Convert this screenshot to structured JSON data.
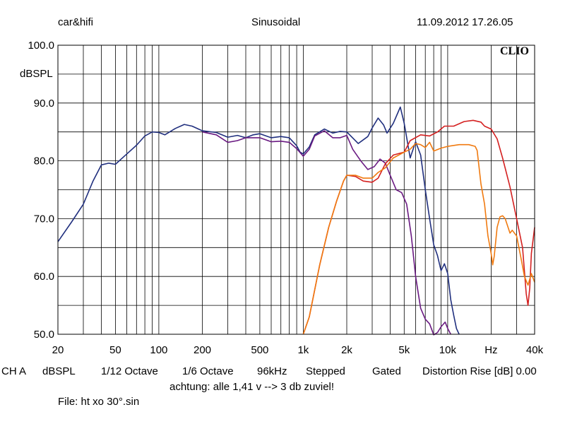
{
  "header": {
    "left": "car&hifi",
    "center": "Sinusoidal",
    "right": "11.09.2012 17.26.05"
  },
  "brand": "CLIO",
  "footer": {
    "channel": "CH A",
    "unit": "dBSPL",
    "smoothing": "1/12 Octave",
    "resolution": "1/6 Octave",
    "rate": "96kHz",
    "mode": "Stepped",
    "gating": "Gated",
    "distortion": "Distortion Rise [dB] 0.00",
    "note": "achtung: alle 1,41 v --> 3 db zuviel!",
    "file": "File: ht xo 30°.sin"
  },
  "chart_data": {
    "type": "line",
    "title": "Sinusoidal",
    "ylabel": "dBSPL",
    "xlabel": "Hz",
    "xscale": "log",
    "xlim": [
      20,
      40000
    ],
    "ylim": [
      50,
      100
    ],
    "grid": true,
    "yticks": [
      {
        "v": 100,
        "label": "100.0"
      },
      {
        "v": 90,
        "label": "90.0"
      },
      {
        "v": 80,
        "label": "80.0"
      },
      {
        "v": 70,
        "label": "70.0"
      },
      {
        "v": 60,
        "label": "60.0"
      },
      {
        "v": 50,
        "label": "50.0"
      }
    ],
    "xticks": [
      {
        "v": 20,
        "label": "20"
      },
      {
        "v": 50,
        "label": "50"
      },
      {
        "v": 100,
        "label": "100"
      },
      {
        "v": 200,
        "label": "200"
      },
      {
        "v": 500,
        "label": "500"
      },
      {
        "v": 1000,
        "label": "1k"
      },
      {
        "v": 2000,
        "label": "2k"
      },
      {
        "v": 5000,
        "label": "5k"
      },
      {
        "v": 10000,
        "label": "10k"
      },
      {
        "v": 20000,
        "label": "Hz"
      },
      {
        "v": 40000,
        "label": "40k"
      }
    ],
    "series": [
      {
        "name": "blue",
        "color": "#202f7e",
        "points": [
          [
            20,
            66
          ],
          [
            25,
            69.5
          ],
          [
            30,
            72.5
          ],
          [
            35,
            76.5
          ],
          [
            40,
            79.3
          ],
          [
            45,
            79.6
          ],
          [
            50,
            79.4
          ],
          [
            60,
            81.2
          ],
          [
            70,
            82.7
          ],
          [
            80,
            84.3
          ],
          [
            90,
            85.0
          ],
          [
            100,
            84.9
          ],
          [
            110,
            84.5
          ],
          [
            130,
            85.6
          ],
          [
            150,
            86.3
          ],
          [
            170,
            86.0
          ],
          [
            200,
            85.2
          ],
          [
            250,
            84.9
          ],
          [
            300,
            84.1
          ],
          [
            350,
            84.4
          ],
          [
            400,
            84.0
          ],
          [
            450,
            84.5
          ],
          [
            500,
            84.7
          ],
          [
            600,
            84.0
          ],
          [
            700,
            84.2
          ],
          [
            800,
            84.0
          ],
          [
            900,
            82.6
          ],
          [
            950,
            81.5
          ],
          [
            1000,
            81.2
          ],
          [
            1100,
            82.4
          ],
          [
            1200,
            84.5
          ],
          [
            1400,
            85.5
          ],
          [
            1600,
            84.8
          ],
          [
            1800,
            85.1
          ],
          [
            2000,
            85.0
          ],
          [
            2400,
            83.0
          ],
          [
            2800,
            84.2
          ],
          [
            3000,
            85.7
          ],
          [
            3300,
            87.4
          ],
          [
            3600,
            86.2
          ],
          [
            3800,
            84.8
          ],
          [
            4200,
            86.5
          ],
          [
            4700,
            89.3
          ],
          [
            5000,
            86.5
          ],
          [
            5500,
            80.5
          ],
          [
            6000,
            83.3
          ],
          [
            6500,
            81.0
          ],
          [
            7000,
            75.0
          ],
          [
            7500,
            70.0
          ],
          [
            8000,
            65.5
          ],
          [
            8500,
            63.6
          ],
          [
            9000,
            61.0
          ],
          [
            9500,
            62.2
          ],
          [
            10000,
            60.5
          ],
          [
            10500,
            56.0
          ],
          [
            11000,
            53.3
          ],
          [
            11500,
            51.0
          ],
          [
            12000,
            50
          ]
        ]
      },
      {
        "name": "purple",
        "color": "#6a1a82",
        "points": [
          [
            200,
            85.0
          ],
          [
            250,
            84.5
          ],
          [
            300,
            83.2
          ],
          [
            350,
            83.5
          ],
          [
            400,
            84.0
          ],
          [
            500,
            84.0
          ],
          [
            600,
            83.3
          ],
          [
            700,
            83.4
          ],
          [
            800,
            83.2
          ],
          [
            900,
            82.1
          ],
          [
            1000,
            80.8
          ],
          [
            1100,
            82.0
          ],
          [
            1200,
            84.3
          ],
          [
            1400,
            85.2
          ],
          [
            1600,
            84.0
          ],
          [
            1800,
            84.0
          ],
          [
            2000,
            84.4
          ],
          [
            2200,
            82.0
          ],
          [
            2500,
            80.0
          ],
          [
            2800,
            78.5
          ],
          [
            3100,
            79.0
          ],
          [
            3400,
            80.3
          ],
          [
            3700,
            79.6
          ],
          [
            4000,
            77.5
          ],
          [
            4400,
            75.0
          ],
          [
            4800,
            74.5
          ],
          [
            5200,
            72.5
          ],
          [
            5600,
            67.0
          ],
          [
            6000,
            60.0
          ],
          [
            6500,
            54.5
          ],
          [
            7000,
            52.6
          ],
          [
            7500,
            51.8
          ],
          [
            8000,
            49.9
          ],
          [
            8500,
            50.3
          ],
          [
            9000,
            51.3
          ],
          [
            9600,
            52.1
          ],
          [
            10000,
            51.0
          ],
          [
            10500,
            50
          ]
        ]
      },
      {
        "name": "red",
        "color": "#d42020",
        "points": [
          [
            1000,
            50
          ],
          [
            1100,
            53
          ],
          [
            1300,
            62
          ],
          [
            1500,
            68.5
          ],
          [
            1700,
            73
          ],
          [
            1900,
            76.5
          ],
          [
            2000,
            77.5
          ],
          [
            2300,
            77.3
          ],
          [
            2600,
            76.5
          ],
          [
            3000,
            76.3
          ],
          [
            3300,
            77.0
          ],
          [
            3700,
            79.5
          ],
          [
            4200,
            81.0
          ],
          [
            5000,
            81.5
          ],
          [
            5500,
            83.5
          ],
          [
            6500,
            84.5
          ],
          [
            7500,
            84.3
          ],
          [
            8500,
            85.0
          ],
          [
            9500,
            86.0
          ],
          [
            11000,
            86.0
          ],
          [
            13000,
            86.8
          ],
          [
            15000,
            87.0
          ],
          [
            17000,
            86.7
          ],
          [
            18000,
            86.0
          ],
          [
            20000,
            85.5
          ],
          [
            22000,
            83.8
          ],
          [
            24000,
            80.5
          ],
          [
            27000,
            75.5
          ],
          [
            30000,
            70.0
          ],
          [
            33000,
            65.0
          ],
          [
            35000,
            57.0
          ],
          [
            36000,
            55.0
          ],
          [
            37000,
            58.0
          ],
          [
            38000,
            64.0
          ],
          [
            40000,
            68.5
          ]
        ]
      },
      {
        "name": "orange",
        "color": "#f07a10",
        "points": [
          [
            1000,
            50
          ],
          [
            1100,
            53
          ],
          [
            1300,
            62
          ],
          [
            1500,
            68.5
          ],
          [
            1700,
            73
          ],
          [
            1900,
            76.5
          ],
          [
            2000,
            77.5
          ],
          [
            2300,
            77.5
          ],
          [
            2600,
            77.0
          ],
          [
            3000,
            77.0
          ],
          [
            3300,
            78.0
          ],
          [
            3700,
            78.8
          ],
          [
            4200,
            80.5
          ],
          [
            5000,
            81.5
          ],
          [
            5500,
            82.0
          ],
          [
            6000,
            83.0
          ],
          [
            6500,
            82.8
          ],
          [
            7000,
            82.3
          ],
          [
            7500,
            83.2
          ],
          [
            8000,
            81.7
          ],
          [
            9000,
            82.2
          ],
          [
            10000,
            82.5
          ],
          [
            12000,
            82.8
          ],
          [
            14000,
            82.8
          ],
          [
            15500,
            82.5
          ],
          [
            16000,
            81.8
          ],
          [
            17000,
            76.0
          ],
          [
            18000,
            72.5
          ],
          [
            19000,
            67.0
          ],
          [
            20000,
            64.0
          ],
          [
            20500,
            62.0
          ],
          [
            21000,
            63.5
          ],
          [
            22000,
            68.5
          ],
          [
            23000,
            70.3
          ],
          [
            24000,
            70.5
          ],
          [
            25000,
            70.0
          ],
          [
            27000,
            67.5
          ],
          [
            28000,
            68.0
          ],
          [
            30000,
            67.0
          ],
          [
            32000,
            63.5
          ],
          [
            34000,
            60.0
          ],
          [
            36000,
            58.5
          ],
          [
            38000,
            60.5
          ],
          [
            40000,
            59.0
          ]
        ]
      }
    ]
  }
}
